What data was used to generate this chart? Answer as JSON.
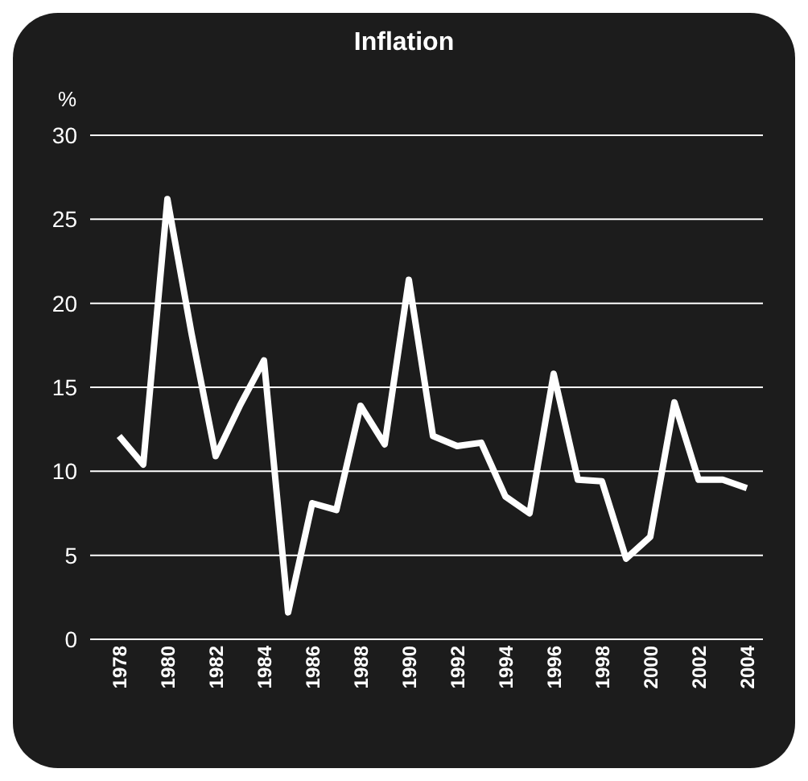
{
  "chart_data": {
    "type": "line",
    "title": "Inflation",
    "ylabel": "%",
    "categories": [
      "1978",
      null,
      "1980",
      null,
      "1982",
      null,
      "1984",
      null,
      "1986",
      null,
      "1988",
      null,
      "1990",
      null,
      "1992",
      null,
      "1994",
      null,
      "1996",
      null,
      "1998",
      null,
      "2000",
      null,
      "2002",
      null,
      "2004"
    ],
    "series": [
      {
        "color": "#ffffff",
        "values": [
          12.1,
          10.4,
          26.2,
          18.2,
          10.9,
          13.9,
          16.6,
          1.6,
          8.1,
          7.7,
          13.9,
          11.6,
          21.4,
          12.1,
          11.5,
          11.7,
          8.5,
          7.5,
          15.8,
          9.5,
          9.4,
          4.8,
          6.1,
          14.1,
          9.5,
          9.5,
          9.0
        ]
      }
    ],
    "ylim": [
      0,
      30
    ],
    "yticks": [
      0,
      5,
      10,
      15,
      20,
      25,
      30
    ],
    "grid": "y",
    "legend": false,
    "marker": "none",
    "line_style": "solid"
  }
}
